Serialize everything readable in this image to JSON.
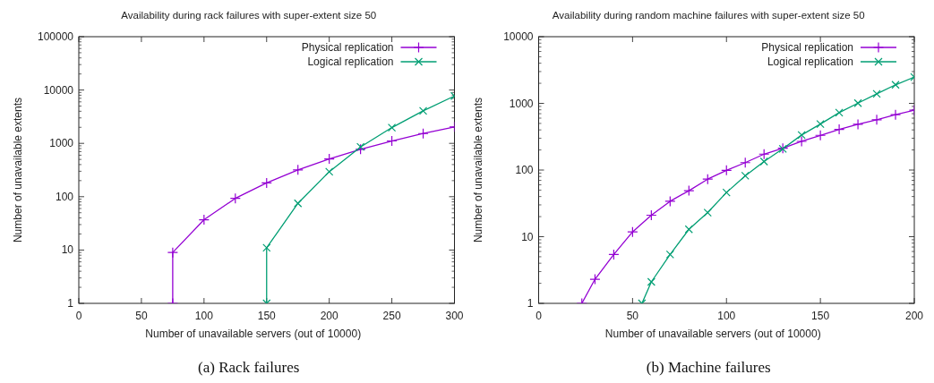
{
  "chart_data": [
    {
      "type": "line",
      "title": "Availability during rack failures with super-extent size 50",
      "xlabel": "Number of unavailable servers (out of 10000)",
      "ylabel": "Number of unavailable extents",
      "log": "y",
      "xlim": [
        0,
        300
      ],
      "xticks": [
        0,
        50,
        100,
        150,
        200,
        250,
        300
      ],
      "ylim": [
        1,
        100000
      ],
      "yticks": [
        1,
        10,
        100,
        1000,
        10000,
        100000
      ],
      "legend": "top right",
      "grid": false,
      "annotations": [
        "(a) Rack failures"
      ],
      "series": [
        {
          "name": "Physical replication",
          "color": "#9400d3",
          "marker": "plus",
          "x": [
            75,
            75,
            100,
            125,
            150,
            175,
            200,
            225,
            250,
            275,
            300
          ],
          "values": [
            1,
            9,
            37,
            93,
            181,
            318,
            512,
            773,
            1109,
            1528,
            2030
          ]
        },
        {
          "name": "Logical replication",
          "color": "#009e73",
          "marker": "cross",
          "x": [
            150,
            150,
            175,
            200,
            225,
            250,
            275,
            300
          ],
          "values": [
            1,
            11,
            75,
            294,
            857,
            1977,
            4064,
            7730
          ]
        }
      ]
    },
    {
      "type": "line",
      "title": "Availability during random machine failures with super-extent size 50",
      "xlabel": "Number of unavailable servers (out of 10000)",
      "ylabel": "Number of unavailable extents",
      "log": "y",
      "xlim": [
        0,
        200
      ],
      "xticks": [
        0,
        50,
        100,
        150,
        200
      ],
      "ylim": [
        1,
        10000
      ],
      "yticks": [
        1,
        10,
        100,
        1000,
        10000
      ],
      "legend": "top right",
      "grid": false,
      "annotations": [
        "(b) Machine failures"
      ],
      "series": [
        {
          "name": "Physical replication",
          "color": "#9400d3",
          "marker": "plus",
          "x": [
            23,
            30,
            40,
            50,
            60,
            70,
            80,
            90,
            100,
            110,
            120,
            130,
            140,
            150,
            160,
            170,
            180,
            190,
            200
          ],
          "values": [
            1,
            2.3,
            5.4,
            11.8,
            21,
            34,
            49,
            73,
            99,
            129,
            173,
            212,
            269,
            331,
            407,
            485,
            567,
            675,
            789
          ]
        },
        {
          "name": "Logical replication",
          "color": "#009e73",
          "marker": "cross",
          "x": [
            55,
            60,
            70,
            80,
            90,
            100,
            110,
            120,
            130,
            140,
            150,
            160,
            170,
            180,
            190,
            200
          ],
          "values": [
            1,
            2.1,
            5.4,
            12.9,
            23,
            46,
            82,
            134,
            208,
            335,
            490,
            726,
            1009,
            1390,
            1897,
            2480
          ]
        }
      ]
    }
  ]
}
